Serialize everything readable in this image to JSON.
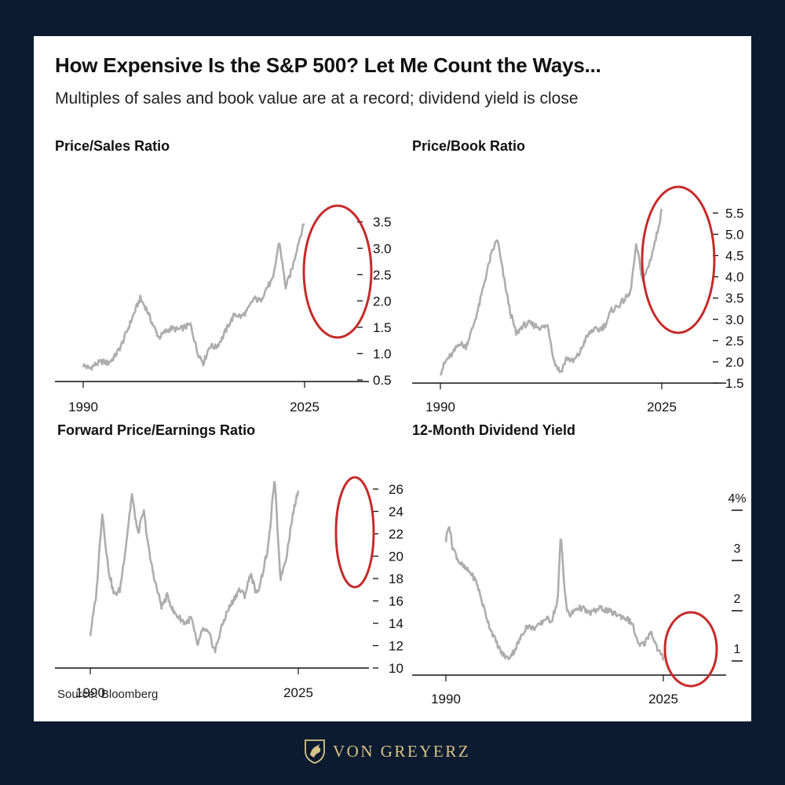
{
  "header": {
    "title": "How Expensive Is the S&P 500? Let Me Count the Ways...",
    "subtitle": "Multiples of sales and book value are at a record; dividend yield is close"
  },
  "footer": {
    "source": "Source: Bloomberg",
    "brand": "VON GREYERZ"
  },
  "colors": {
    "line": "#adadad",
    "circle": "#c62a2a",
    "axis": "#111111",
    "background": "#0c1b30",
    "brand": "#d8c487"
  },
  "chart_data": [
    {
      "type": "line",
      "title": "Price/Sales Ratio",
      "x_tick_labels": [
        "1990",
        "2025"
      ],
      "y_ticks": [
        0.5,
        1.0,
        1.5,
        2.0,
        2.5,
        3.0,
        3.5
      ],
      "y_tick_labels": [
        "0.5",
        "1.0",
        "1.5",
        "2.0",
        "2.5",
        "3.0",
        "3.5"
      ],
      "ylim": [
        0.5,
        3.6
      ],
      "xlim": [
        1990,
        2025
      ],
      "highlight": "circle around 2020-2025",
      "x": [
        1990,
        1991,
        1992,
        1993,
        1994,
        1995,
        1996,
        1997,
        1998,
        1999,
        2000,
        2001,
        2002,
        2003,
        2004,
        2005,
        2006,
        2007,
        2008,
        2009,
        2010,
        2011,
        2012,
        2013,
        2014,
        2015,
        2016,
        2017,
        2018,
        2019,
        2020,
        2021,
        2022,
        2023,
        2024,
        2025
      ],
      "y": [
        0.78,
        0.72,
        0.8,
        0.85,
        0.82,
        0.95,
        1.15,
        1.45,
        1.75,
        2.05,
        1.85,
        1.55,
        1.3,
        1.42,
        1.48,
        1.45,
        1.5,
        1.55,
        1.05,
        0.82,
        1.15,
        1.12,
        1.3,
        1.55,
        1.75,
        1.7,
        1.82,
        2.05,
        2.0,
        2.25,
        2.4,
        3.15,
        2.25,
        2.6,
        3.1,
        3.5
      ]
    },
    {
      "type": "line",
      "title": "Price/Book Ratio",
      "x_tick_labels": [
        "1990",
        "2025"
      ],
      "y_ticks": [
        1.5,
        2.0,
        2.5,
        3.0,
        3.5,
        4.0,
        4.5,
        5.0,
        5.5
      ],
      "y_tick_labels": [
        "1.5",
        "2.0",
        "2.5",
        "3.0",
        "3.5",
        "4.0",
        "4.5",
        "5.0",
        "5.5"
      ],
      "ylim": [
        1.5,
        5.6
      ],
      "xlim": [
        1990,
        2025
      ],
      "highlight": "circle around 2020-2025",
      "x": [
        1990,
        1991,
        1992,
        1993,
        1994,
        1995,
        1996,
        1997,
        1998,
        1999,
        2000,
        2001,
        2002,
        2003,
        2004,
        2005,
        2006,
        2007,
        2008,
        2009,
        2010,
        2011,
        2012,
        2013,
        2014,
        2015,
        2016,
        2017,
        2018,
        2019,
        2020,
        2021,
        2022,
        2023,
        2024,
        2025
      ],
      "y": [
        1.75,
        2.05,
        2.2,
        2.45,
        2.35,
        2.75,
        3.25,
        3.9,
        4.5,
        4.9,
        4.0,
        3.2,
        2.65,
        2.85,
        2.9,
        2.85,
        2.8,
        2.85,
        2.0,
        1.75,
        2.1,
        2.0,
        2.2,
        2.55,
        2.75,
        2.75,
        2.85,
        3.2,
        3.3,
        3.45,
        3.6,
        4.75,
        3.9,
        4.3,
        4.85,
        5.55
      ]
    },
    {
      "type": "line",
      "title": "Forward Price/Earnings Ratio",
      "x_tick_labels": [
        "1990",
        "2025"
      ],
      "y_ticks": [
        10,
        12,
        14,
        16,
        18,
        20,
        22,
        24,
        26
      ],
      "y_tick_labels": [
        "10",
        "12",
        "14",
        "16",
        "18",
        "20",
        "22",
        "24",
        "26"
      ],
      "ylim": [
        10,
        26
      ],
      "xlim": [
        1990,
        2025
      ],
      "highlight": "circle around 2022-2025",
      "x": [
        1990,
        1991,
        1992,
        1993,
        1994,
        1995,
        1996,
        1997,
        1998,
        1999,
        2000,
        2001,
        2002,
        2003,
        2004,
        2005,
        2006,
        2007,
        2008,
        2009,
        2010,
        2011,
        2012,
        2013,
        2014,
        2015,
        2016,
        2017,
        2018,
        2019,
        2020,
        2021,
        2022,
        2023,
        2024,
        2025
      ],
      "y": [
        13.0,
        16.5,
        24.0,
        19.0,
        16.5,
        17.0,
        21.0,
        25.5,
        22.0,
        24.0,
        20.0,
        17.5,
        15.5,
        16.5,
        15.0,
        14.5,
        14.0,
        14.5,
        12.0,
        13.5,
        13.0,
        11.5,
        13.5,
        15.0,
        16.0,
        17.0,
        16.5,
        18.5,
        16.5,
        18.5,
        21.0,
        27.0,
        18.0,
        20.0,
        23.5,
        26.0
      ]
    },
    {
      "type": "line",
      "title": "12-Month Dividend Yield",
      "x_tick_labels": [
        "1990",
        "2025"
      ],
      "y_ticks": [
        1,
        2,
        3,
        4
      ],
      "y_tick_labels": [
        "1",
        "2",
        "3",
        "4%"
      ],
      "ylim": [
        0.75,
        4.0
      ],
      "xlim": [
        1990,
        2025
      ],
      "highlight": "circle around 2022-2025",
      "x": [
        1990,
        1990.5,
        1991,
        1992,
        1993,
        1994,
        1995,
        1996,
        1997,
        1998,
        1999,
        2000,
        2001,
        2002,
        2003,
        2004,
        2005,
        2006,
        2007,
        2008,
        2008.5,
        2009,
        2009.5,
        2010,
        2011,
        2012,
        2013,
        2014,
        2015,
        2016,
        2017,
        2018,
        2019,
        2020,
        2021,
        2022,
        2023,
        2024,
        2025
      ],
      "y": [
        3.4,
        3.75,
        3.3,
        3.0,
        2.85,
        2.75,
        2.55,
        2.1,
        1.7,
        1.4,
        1.15,
        1.05,
        1.2,
        1.45,
        1.7,
        1.65,
        1.7,
        1.85,
        1.8,
        2.2,
        3.55,
        2.6,
        2.0,
        1.9,
        2.05,
        2.05,
        1.95,
        2.0,
        2.05,
        2.0,
        1.95,
        1.9,
        1.85,
        1.75,
        1.3,
        1.35,
        1.6,
        1.25,
        1.05
      ]
    }
  ]
}
